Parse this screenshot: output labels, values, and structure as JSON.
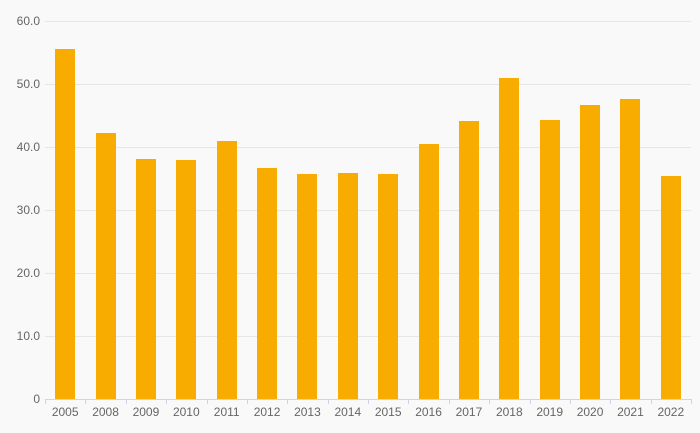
{
  "chart_data": {
    "type": "bar",
    "title": "",
    "xlabel": "",
    "ylabel": "",
    "categories": [
      "2005",
      "2008",
      "2009",
      "2010",
      "2011",
      "2012",
      "2013",
      "2014",
      "2015",
      "2016",
      "2017",
      "2018",
      "2019",
      "2020",
      "2021",
      "2022"
    ],
    "values": [
      55.5,
      42.3,
      38.1,
      37.9,
      41.0,
      36.7,
      35.7,
      35.9,
      35.7,
      40.4,
      44.1,
      50.9,
      44.3,
      46.6,
      47.6,
      35.4
    ],
    "ylim": [
      0,
      60
    ],
    "ytick_values": [
      0,
      10,
      20,
      30,
      40,
      50,
      60
    ],
    "ytick_labels": [
      "0",
      "10.0",
      "20.0",
      "30.0",
      "40.0",
      "50.0",
      "60.0"
    ],
    "grid": true,
    "legend": false,
    "colors": {
      "bar": "#F9AC00",
      "background": "#F9F9F9",
      "gridline": "#E6E6E6",
      "axis_line": "#CCD6EB",
      "label_text": "#666666"
    }
  }
}
